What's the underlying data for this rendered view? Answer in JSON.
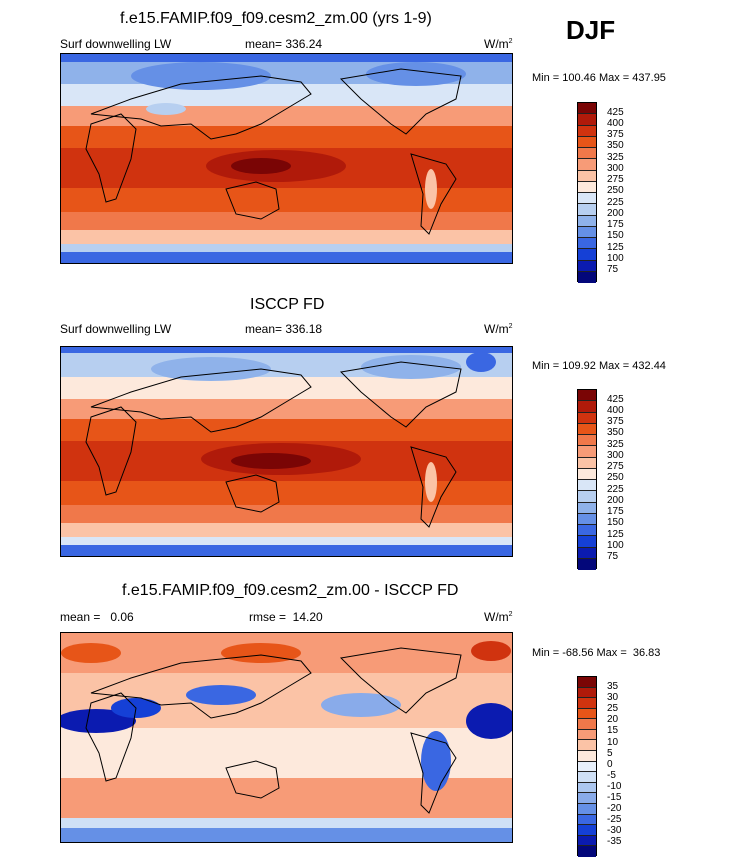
{
  "season": "DJF",
  "panels": [
    {
      "title": "f.e15.FAMIP.f09_f09.cesm2_zm.00 (yrs 1-9)",
      "variable": "Surf downwelling LW",
      "mean_label": "mean= 336.24",
      "units": "W/m",
      "units_exp": "2",
      "minmax": "Min = 100.46 Max = 437.95",
      "levels": [
        "425",
        "400",
        "375",
        "350",
        "325",
        "300",
        "275",
        "250",
        "225",
        "200",
        "175",
        "150",
        "125",
        "100",
        "75"
      ]
    },
    {
      "title": "ISCCP FD",
      "variable": "Surf downwelling LW",
      "mean_label": "mean= 336.18",
      "units": "W/m",
      "units_exp": "2",
      "minmax": "Min = 109.92 Max = 432.44",
      "levels": [
        "425",
        "400",
        "375",
        "350",
        "325",
        "300",
        "275",
        "250",
        "225",
        "200",
        "175",
        "150",
        "125",
        "100",
        "75"
      ]
    },
    {
      "title": "f.e15.FAMIP.f09_f09.cesm2_zm.00 - ISCCP FD",
      "mean_label": "mean =   0.06",
      "rmse_label": "rmse =  14.20",
      "units": "W/m",
      "units_exp": "2",
      "minmax": "Min = -68.56 Max =  36.83",
      "levels": [
        "35",
        "30",
        "25",
        "20",
        "15",
        "10",
        "5",
        "0",
        "-5",
        "-10",
        "-15",
        "-20",
        "-25",
        "-30",
        "-35"
      ]
    }
  ],
  "colors": {
    "abs_scale": [
      "#7a0505",
      "#b01a0a",
      "#d0330f",
      "#e75518",
      "#f0784a",
      "#f79b77",
      "#fbc3a6",
      "#fde9dc",
      "#d9e6f7",
      "#b7cff0",
      "#8fb2ea",
      "#6590e6",
      "#3a67e2",
      "#1540d6",
      "#0b1bb0",
      "#03077a"
    ],
    "diff_scale": [
      "#7a0505",
      "#b01a0a",
      "#d0330f",
      "#e75518",
      "#f0784a",
      "#f79b77",
      "#fbc3a6",
      "#fde9dc",
      "#e8f0fb",
      "#cfe0f6",
      "#acc7f0",
      "#89abea",
      "#6590e6",
      "#3a67e2",
      "#1540d6",
      "#0b1bb0",
      "#03077a"
    ]
  }
}
